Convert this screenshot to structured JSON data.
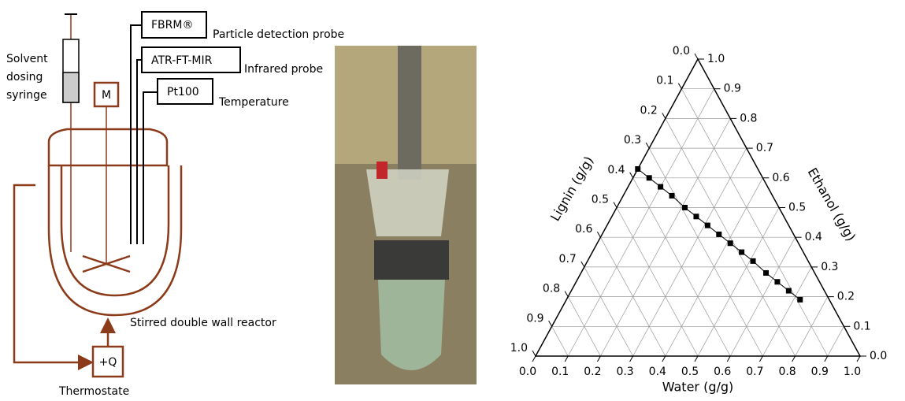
{
  "diagram": {
    "syringe": [
      "Solvent",
      "dosing",
      "syringe"
    ],
    "motor": "M",
    "probes": [
      {
        "box": "FBRM®",
        "label": "Particle detection probe"
      },
      {
        "box": "ATR-FT-MIR",
        "label": "Infrared probe"
      },
      {
        "box": "Pt100",
        "label": "Temperature"
      }
    ],
    "reactor": "Stirred double wall reactor",
    "heat": "+Q",
    "thermostat": "Thermostate"
  },
  "chart_data": {
    "type": "ternary",
    "x_label": "Water (g/g)",
    "right_label": "Ethanol (g/g)",
    "left_label": "Lignin (g/g)",
    "ticks": [
      {
        "value": 0,
        "label": "0.0"
      },
      {
        "value": 0.1,
        "label": "0.1"
      },
      {
        "value": 0.2,
        "label": "0.2"
      },
      {
        "value": 0.3,
        "label": "0.3"
      },
      {
        "value": 0.4,
        "label": "0.4"
      },
      {
        "value": 0.5,
        "label": "0.5"
      },
      {
        "value": 0.6,
        "label": "0.6"
      },
      {
        "value": 0.7,
        "label": "0.7"
      },
      {
        "value": 0.8,
        "label": "0.8"
      },
      {
        "value": 0.9,
        "label": "0.9"
      },
      {
        "value": 1,
        "label": "1.0"
      }
    ],
    "grid": true,
    "color": "#000000",
    "water": [
      0,
      0.05,
      0.1,
      0.15,
      0.21,
      0.26,
      0.31,
      0.36,
      0.41,
      0.46,
      0.51,
      0.57,
      0.62,
      0.67,
      0.72
    ],
    "ethanol": [
      0.63,
      0.6,
      0.57,
      0.54,
      0.5,
      0.47,
      0.44,
      0.41,
      0.38,
      0.35,
      0.32,
      0.28,
      0.25,
      0.22,
      0.19
    ],
    "lignin": [
      0.37,
      0.35,
      0.33,
      0.31,
      0.29,
      0.27,
      0.25,
      0.23,
      0.21,
      0.19,
      0.17,
      0.15,
      0.13,
      0.11,
      0.09
    ]
  }
}
